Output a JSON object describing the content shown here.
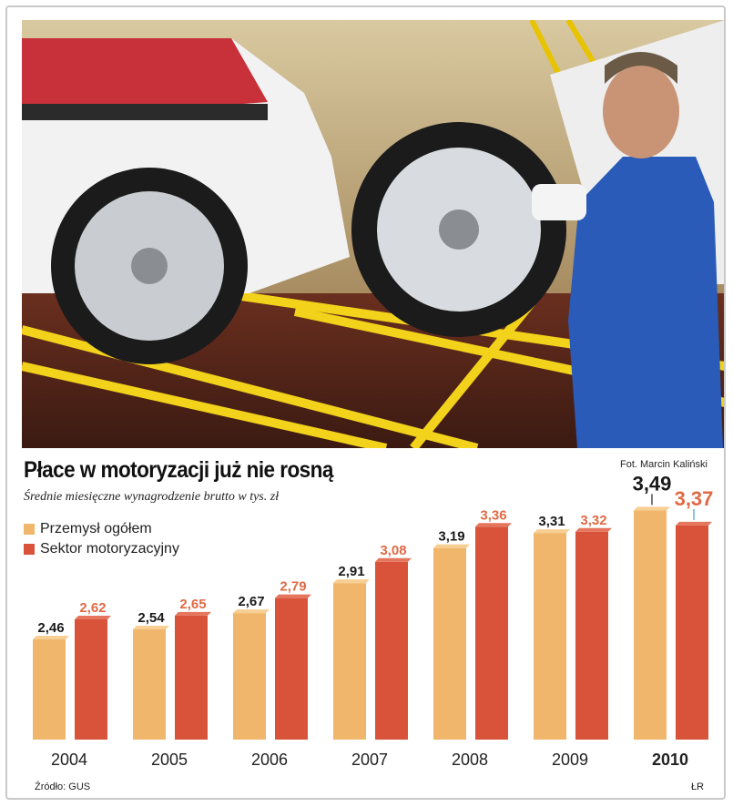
{
  "photo": {
    "description_icon": "car-factory-photo-icon"
  },
  "credit": "Fot. Marcin Kaliński",
  "title": "Płace w motoryzacji już nie rosną",
  "subtitle": "Średnie miesięczne wynagrodzenie brutto w tys. zł",
  "legend": [
    "Przemysł ogółem",
    "Sektor motoryzacyjny"
  ],
  "source": "Źródło: GUS",
  "signature": "ŁR",
  "colors": {
    "industry": "#f0b66b",
    "motor": "#d9533a",
    "industry_label": "#1a1a1a",
    "motor_label": "#e06a45"
  },
  "chart_data": {
    "type": "bar",
    "categories": [
      "2004",
      "2005",
      "2006",
      "2007",
      "2008",
      "2009",
      "2010"
    ],
    "series": [
      {
        "name": "Przemysł ogółem",
        "values": [
          2.46,
          2.54,
          2.67,
          2.91,
          3.19,
          3.31,
          3.49
        ],
        "labels": [
          "2,46",
          "2,54",
          "2,67",
          "2,91",
          "3,19",
          "3,31",
          "3,49"
        ]
      },
      {
        "name": "Sektor motoryzacyjny",
        "values": [
          2.62,
          2.65,
          2.79,
          3.08,
          3.36,
          3.32,
          3.37
        ],
        "labels": [
          "2,62",
          "2,65",
          "2,79",
          "3,08",
          "3,36",
          "3,32",
          "3,37"
        ]
      }
    ],
    "highlight_category": "2010"
  }
}
